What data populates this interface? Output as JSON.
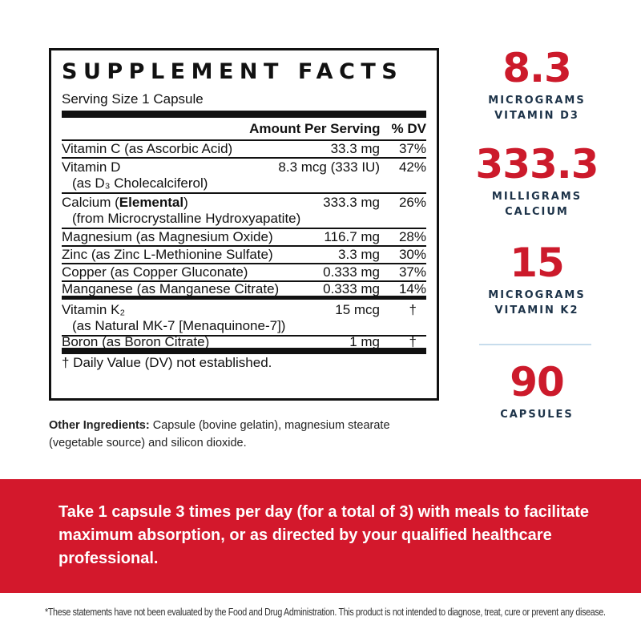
{
  "facts": {
    "title": "SUPPLEMENT FACTS",
    "serving_size": "Serving Size 1 Capsule",
    "header_amount": "Amount Per Serving",
    "header_dv": "% DV",
    "rows": [
      {
        "name": "Vitamin C (as Ascorbic Acid)",
        "amount": "33.3 mg",
        "dv": "37%"
      },
      {
        "name": "Vitamin D",
        "sub": "(as D₃ Cholecalciferol)",
        "amount": "8.3 mcg (333 IU)",
        "dv": "42%"
      },
      {
        "name_prefix": "Calcium (",
        "name_bold": "Elemental",
        "name_suffix": ")",
        "sub": "(from Microcrystalline Hydroxyapatite)",
        "amount": "333.3 mg",
        "dv": "26%"
      },
      {
        "name": "Magnesium (as Magnesium Oxide)",
        "amount": "116.7 mg",
        "dv": "28%"
      },
      {
        "name": "Zinc (as Zinc L-Methionine Sulfate)",
        "amount": "3.3 mg",
        "dv": "30%"
      },
      {
        "name": "Copper (as Copper Gluconate)",
        "amount": "0.333 mg",
        "dv": "37%"
      },
      {
        "name": "Manganese (as Manganese Citrate)",
        "amount": "0.333 mg",
        "dv": "14%"
      },
      {
        "name": "Vitamin K₂",
        "sub": "(as Natural MK-7 [Menaquinone-7])",
        "amount": "15 mcg",
        "dv": "†"
      },
      {
        "name": "Boron (as Boron Citrate)",
        "amount": "1 mg",
        "dv": "†"
      }
    ],
    "footnote": "† Daily Value (DV) not established."
  },
  "other_ingredients": {
    "label": "Other Ingredients:",
    "text": " Capsule (bovine gelatin), magnesium stearate (vegetable source) and silicon dioxide."
  },
  "stats": [
    {
      "value": "8.3",
      "line1": "MICROGRAMS",
      "line2": "VITAMIN D3"
    },
    {
      "value": "333.3",
      "line1": "MILLIGRAMS",
      "line2": "CALCIUM"
    },
    {
      "value": "15",
      "line1": "MICROGRAMS",
      "line2": "VITAMIN K2"
    },
    {
      "value": "90",
      "line1": "CAPSULES",
      "line2": ""
    }
  ],
  "directions": "Take 1 capsule 3 times per day (for a total of 3) with meals to facilitate maximum absorption, or as directed by your qualified healthcare professional.",
  "disclaimer": "*These statements have not been evaluated by the Food and Drug Administration. This product is not intended to diagnose, treat, cure or prevent any disease.",
  "colors": {
    "accent_red": "#d3182c",
    "stat_red": "#cc1a2b",
    "caption_navy": "#1d3349",
    "divider_blue": "#c7dcec"
  }
}
